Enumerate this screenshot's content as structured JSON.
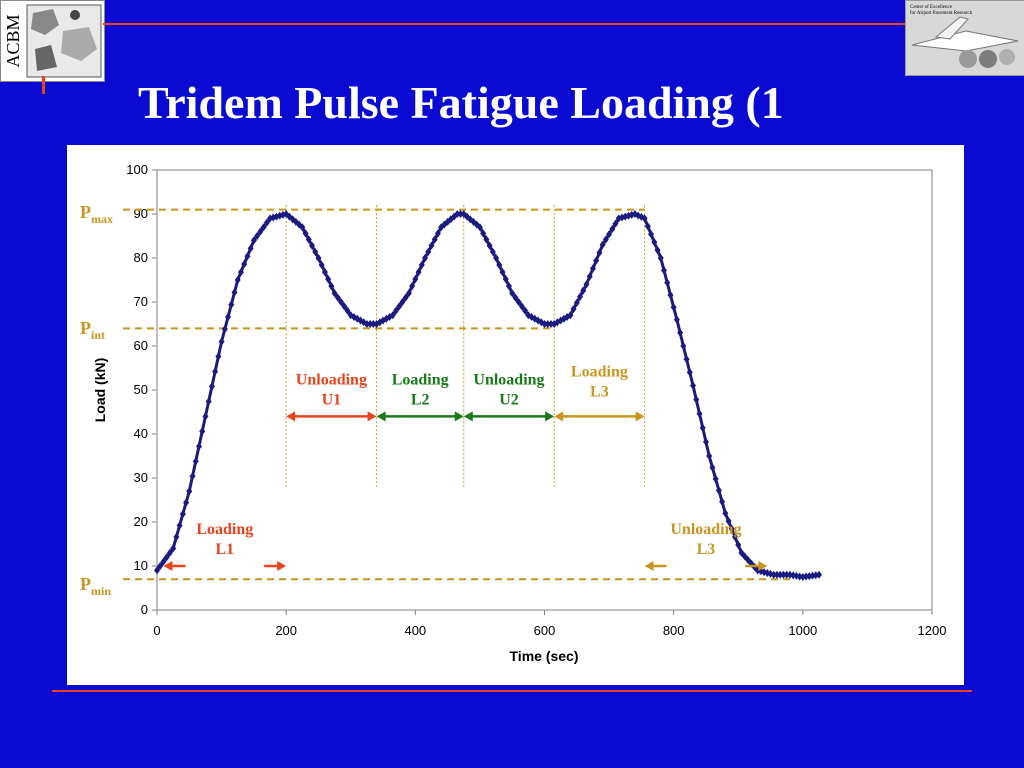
{
  "slide": {
    "title": "Tridem Pulse Fatigue Loading (1",
    "logo_left_text": "ACBM",
    "logo_right_line1": "Center of Excellence",
    "logo_right_line2": "for Airport Pavement Research"
  },
  "colors": {
    "background": "#0a0ad2",
    "accent_rule": "#e8441c",
    "curve": "#1a1a80",
    "p_lines": "#c8961e",
    "loading_red": "#e8441c",
    "loading_green": "#1a7a1a",
    "loading_gold": "#c8961e"
  },
  "chart_data": {
    "type": "line",
    "xlabel": "Time (sec)",
    "ylabel": "Load (kN)",
    "xlim": [
      0,
      1200
    ],
    "ylim": [
      0,
      100
    ],
    "xticks": [
      0,
      200,
      400,
      600,
      800,
      1000,
      1200
    ],
    "yticks": [
      0,
      10,
      20,
      30,
      40,
      50,
      60,
      70,
      80,
      90,
      100
    ],
    "grid": false,
    "series": [
      {
        "marker": "diamond",
        "x": [
          0,
          25,
          50,
          75,
          100,
          125,
          150,
          175,
          200,
          225,
          250,
          275,
          300,
          325,
          340,
          365,
          390,
          415,
          440,
          465,
          475,
          500,
          525,
          550,
          575,
          600,
          615,
          640,
          665,
          690,
          715,
          740,
          755,
          780,
          805,
          830,
          855,
          880,
          905,
          930,
          955,
          980,
          1000,
          1025
        ],
        "values": [
          9,
          14,
          27,
          44,
          61,
          75,
          84,
          89,
          90,
          87,
          80,
          72,
          67,
          65,
          65,
          67,
          72,
          80,
          87,
          90,
          90,
          87,
          80,
          72,
          67,
          65,
          65,
          67,
          74,
          83,
          89,
          90,
          89,
          80,
          66,
          51,
          35,
          22,
          13,
          9,
          8,
          8,
          7.5,
          8
        ]
      }
    ],
    "levels": {
      "pmax": 91,
      "pint": 64,
      "pmin": 7
    },
    "level_labels": {
      "pmax_main": "P",
      "pmax_sub": "max",
      "pint_main": "P",
      "pint_sub": "int",
      "pmin_main": "P",
      "pmin_sub": "min"
    },
    "phase_boundaries": [
      200,
      340,
      475,
      615,
      755
    ],
    "annotations": [
      {
        "line1": "Loading",
        "line2": "L1",
        "color": "#e8441c",
        "x_from": 10,
        "x_to": 200,
        "level": 10,
        "style": "inward"
      },
      {
        "line1": "Unloading",
        "line2": "U1",
        "color": "#e8441c",
        "x_from": 200,
        "x_to": 340,
        "level": 44,
        "style": "double"
      },
      {
        "line1": "Loading",
        "line2": "L2",
        "color": "#1a7a1a",
        "x_from": 340,
        "x_to": 475,
        "level": 44,
        "style": "double"
      },
      {
        "line1": "Unloading",
        "line2": "U2",
        "color": "#1a7a1a",
        "x_from": 475,
        "x_to": 615,
        "level": 44,
        "style": "double"
      },
      {
        "line1": "Loading",
        "line2": "L3",
        "color": "#c8961e",
        "x_from": 615,
        "x_to": 755,
        "level": 44,
        "style": "double"
      },
      {
        "line1": "Unloading",
        "line2": "L3",
        "color": "#c8961e",
        "x_from": 755,
        "x_to": 945,
        "level": 10,
        "style": "inward"
      }
    ]
  }
}
